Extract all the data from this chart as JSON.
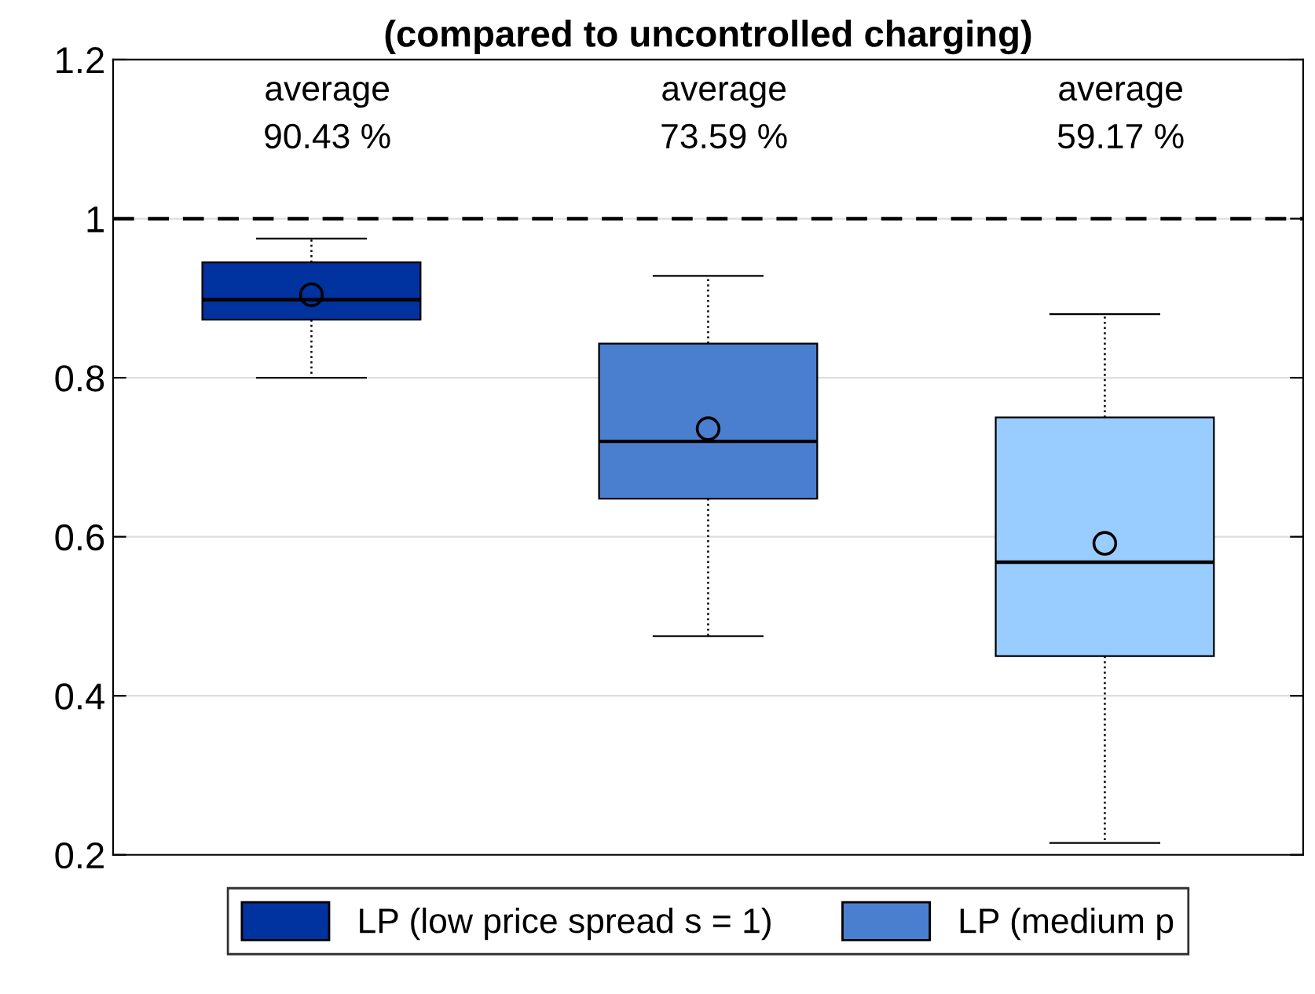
{
  "chart_data": {
    "type": "box",
    "title": "(compared to uncontrolled charging)",
    "categories": [
      null,
      null,
      null
    ],
    "series": [
      {
        "name": "LP (low price spread s = 1)",
        "color": "#0033a0",
        "boxes": [
          {
            "low": 0.8,
            "q1": 0.873,
            "median": 0.898,
            "q3": 0.945,
            "high": 0.975,
            "mean": 0.9043
          },
          null,
          null
        ]
      },
      {
        "name": "LP (medium p",
        "color": "#4a7fd0",
        "boxes": [
          null,
          {
            "low": 0.475,
            "q1": 0.648,
            "median": 0.72,
            "q3": 0.843,
            "high": 0.928,
            "mean": 0.7359
          },
          null
        ]
      },
      {
        "color": "#99ccff",
        "boxes": [
          null,
          null,
          {
            "low": 0.215,
            "q1": 0.45,
            "median": 0.568,
            "q3": 0.75,
            "high": 0.88,
            "mean": 0.5917
          }
        ]
      }
    ],
    "ylim": [
      0.2,
      1.2
    ],
    "yticks": [
      0.2,
      0.4,
      0.6,
      0.8,
      1,
      1.2
    ],
    "ref_lines": [
      {
        "axis": "y",
        "value": 1,
        "color": "#000000",
        "line_style": "dashed"
      }
    ],
    "annotations": [
      "average\n90.43 %",
      "average\n73.59 %",
      "average\n59.17 %"
    ],
    "grid": "y",
    "legend": "bottom",
    "marker": "circle"
  }
}
